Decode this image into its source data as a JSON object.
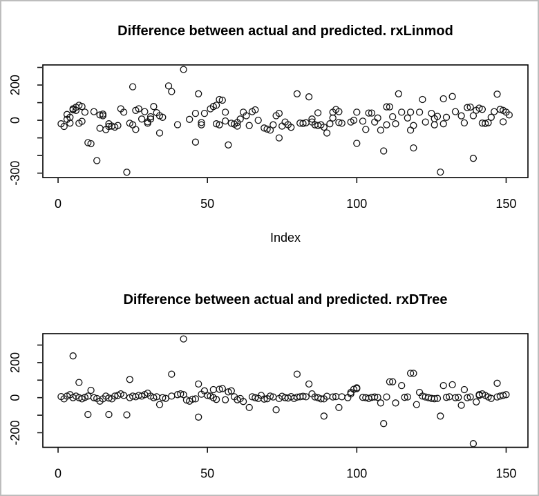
{
  "window": {
    "background": "#ffffff",
    "border_color": "#bdbdbd"
  },
  "styles": {
    "point_color": "#111111",
    "axis_color": "#000000",
    "text_color": "#000000"
  },
  "chart_data": [
    {
      "type": "scatter",
      "title": "Difference between actual and predicted. rxLinmod",
      "xlabel": "Index",
      "ylabel": "",
      "grid": false,
      "legend": null,
      "xlim": [
        -5.1,
        157.3
      ],
      "ylim": [
        -325,
        314
      ],
      "x_ticks": [
        {
          "v": 0,
          "label": "0"
        },
        {
          "v": 50,
          "label": "50"
        },
        {
          "v": 100,
          "label": "100"
        },
        {
          "v": 150,
          "label": "150"
        }
      ],
      "y_ticks": [
        {
          "v": 300,
          "label": ""
        },
        {
          "v": 200,
          "label": "200"
        },
        {
          "v": 100,
          "label": ""
        },
        {
          "v": 0,
          "label": "0"
        },
        {
          "v": -100,
          "label": ""
        },
        {
          "v": -200,
          "label": ""
        },
        {
          "v": -300,
          "label": "-300"
        }
      ],
      "points": [
        [
          1,
          -20
        ],
        [
          2,
          -35
        ],
        [
          3,
          5
        ],
        [
          3,
          33
        ],
        [
          4,
          -16
        ],
        [
          4,
          17
        ],
        [
          5,
          59
        ],
        [
          5,
          65
        ],
        [
          6,
          74
        ],
        [
          6,
          56
        ],
        [
          7,
          85
        ],
        [
          7,
          -17
        ],
        [
          8,
          78
        ],
        [
          8,
          -6
        ],
        [
          9,
          46
        ],
        [
          10,
          -127
        ],
        [
          11,
          -133
        ],
        [
          12,
          49
        ],
        [
          13,
          -229
        ],
        [
          14,
          -45
        ],
        [
          14,
          30
        ],
        [
          15,
          35
        ],
        [
          15,
          26
        ],
        [
          16,
          -53
        ],
        [
          17,
          -35
        ],
        [
          17,
          -20
        ],
        [
          18,
          -33
        ],
        [
          19,
          -39
        ],
        [
          20,
          -30
        ],
        [
          21,
          65
        ],
        [
          22,
          46
        ],
        [
          23,
          -295
        ],
        [
          24,
          -17
        ],
        [
          25,
          190
        ],
        [
          25,
          -26
        ],
        [
          26,
          -52
        ],
        [
          26,
          56
        ],
        [
          27,
          65
        ],
        [
          28,
          7
        ],
        [
          29,
          49
        ],
        [
          30,
          -9
        ],
        [
          30,
          -17
        ],
        [
          31,
          7
        ],
        [
          31,
          20
        ],
        [
          32,
          78
        ],
        [
          33,
          43
        ],
        [
          34,
          26
        ],
        [
          34,
          -72
        ],
        [
          35,
          17
        ],
        [
          37,
          195
        ],
        [
          38,
          163
        ],
        [
          40,
          -25
        ],
        [
          42,
          288
        ],
        [
          44,
          5
        ],
        [
          46,
          39
        ],
        [
          46,
          -124
        ],
        [
          47,
          150
        ],
        [
          48,
          -13
        ],
        [
          48,
          -26
        ],
        [
          49,
          39
        ],
        [
          51,
          65
        ],
        [
          52,
          78
        ],
        [
          53,
          85
        ],
        [
          53,
          -20
        ],
        [
          54,
          118
        ],
        [
          54,
          -26
        ],
        [
          55,
          114
        ],
        [
          56,
          -4
        ],
        [
          56,
          46
        ],
        [
          57,
          -140
        ],
        [
          58,
          -17
        ],
        [
          59,
          -22
        ],
        [
          60,
          -33
        ],
        [
          60,
          -13
        ],
        [
          61,
          7
        ],
        [
          62,
          46
        ],
        [
          63,
          26
        ],
        [
          64,
          -30
        ],
        [
          65,
          49
        ],
        [
          66,
          59
        ],
        [
          67,
          0
        ],
        [
          69,
          -44
        ],
        [
          70,
          -50
        ],
        [
          71,
          -56
        ],
        [
          72,
          -26
        ],
        [
          73,
          26
        ],
        [
          74,
          39
        ],
        [
          74,
          -100
        ],
        [
          75,
          -33
        ],
        [
          76,
          -10
        ],
        [
          77,
          -25
        ],
        [
          78,
          -40
        ],
        [
          80,
          150
        ],
        [
          81,
          -16
        ],
        [
          82,
          -18
        ],
        [
          83,
          -14
        ],
        [
          84,
          133
        ],
        [
          85,
          7
        ],
        [
          85,
          -10
        ],
        [
          86,
          -26
        ],
        [
          87,
          42
        ],
        [
          87,
          -30
        ],
        [
          88,
          -26
        ],
        [
          89,
          -39
        ],
        [
          90,
          -72
        ],
        [
          91,
          -20
        ],
        [
          92,
          13
        ],
        [
          92,
          46
        ],
        [
          93,
          61
        ],
        [
          94,
          49
        ],
        [
          94,
          -13
        ],
        [
          95,
          -17
        ],
        [
          98,
          -10
        ],
        [
          99,
          0
        ],
        [
          100,
          46
        ],
        [
          100,
          -131
        ],
        [
          102,
          -5
        ],
        [
          103,
          -52
        ],
        [
          104,
          41
        ],
        [
          105,
          41
        ],
        [
          106,
          -10
        ],
        [
          107,
          13
        ],
        [
          108,
          -56
        ],
        [
          109,
          -174
        ],
        [
          110,
          -26
        ],
        [
          110,
          76
        ],
        [
          111,
          76
        ],
        [
          112,
          20
        ],
        [
          113,
          -20
        ],
        [
          114,
          150
        ],
        [
          115,
          46
        ],
        [
          117,
          13
        ],
        [
          118,
          -56
        ],
        [
          118,
          46
        ],
        [
          119,
          -30
        ],
        [
          119,
          -157
        ],
        [
          121,
          46
        ],
        [
          122,
          118
        ],
        [
          123,
          -10
        ],
        [
          125,
          39
        ],
        [
          126,
          9
        ],
        [
          126,
          -26
        ],
        [
          127,
          22
        ],
        [
          128,
          -294
        ],
        [
          129,
          122
        ],
        [
          129,
          -20
        ],
        [
          130,
          17
        ],
        [
          132,
          135
        ],
        [
          133,
          49
        ],
        [
          135,
          25
        ],
        [
          136,
          -15
        ],
        [
          137,
          72
        ],
        [
          138,
          75
        ],
        [
          139,
          26
        ],
        [
          139,
          -216
        ],
        [
          140,
          57
        ],
        [
          141,
          69
        ],
        [
          142,
          62
        ],
        [
          142,
          -16
        ],
        [
          143,
          -18
        ],
        [
          144,
          -14
        ],
        [
          145,
          17
        ],
        [
          146,
          49
        ],
        [
          147,
          148
        ],
        [
          148,
          62
        ],
        [
          149,
          56
        ],
        [
          149,
          -9
        ],
        [
          150,
          46
        ],
        [
          151,
          30
        ]
      ]
    },
    {
      "type": "scatter",
      "title": "Difference between actual and predicted. rxDTree",
      "xlabel": "",
      "ylabel": "",
      "grid": false,
      "legend": null,
      "xlim": [
        -5.1,
        157.3
      ],
      "ylim": [
        -283,
        365
      ],
      "x_ticks": [
        {
          "v": 0,
          "label": "0"
        },
        {
          "v": 50,
          "label": "50"
        },
        {
          "v": 100,
          "label": "100"
        },
        {
          "v": 150,
          "label": "150"
        }
      ],
      "y_ticks": [
        {
          "v": 300,
          "label": ""
        },
        {
          "v": 200,
          "label": "200"
        },
        {
          "v": 100,
          "label": ""
        },
        {
          "v": 0,
          "label": "0"
        },
        {
          "v": -100,
          "label": ""
        },
        {
          "v": -200,
          "label": "-200"
        }
      ],
      "points": [
        [
          1,
          6
        ],
        [
          2,
          -7
        ],
        [
          3,
          9
        ],
        [
          4,
          17
        ],
        [
          5,
          238
        ],
        [
          5,
          0
        ],
        [
          6,
          9
        ],
        [
          7,
          87
        ],
        [
          7,
          0
        ],
        [
          8,
          -7
        ],
        [
          9,
          2
        ],
        [
          10,
          9
        ],
        [
          10,
          -96
        ],
        [
          11,
          42
        ],
        [
          12,
          0
        ],
        [
          13,
          -5
        ],
        [
          14,
          -20
        ],
        [
          15,
          -7
        ],
        [
          16,
          9
        ],
        [
          17,
          -2
        ],
        [
          17,
          -96
        ],
        [
          18,
          -7
        ],
        [
          19,
          9
        ],
        [
          20,
          13
        ],
        [
          21,
          22
        ],
        [
          22,
          13
        ],
        [
          23,
          -98
        ],
        [
          24,
          104
        ],
        [
          24,
          0
        ],
        [
          25,
          9
        ],
        [
          26,
          5
        ],
        [
          27,
          13
        ],
        [
          28,
          9
        ],
        [
          29,
          17
        ],
        [
          30,
          26
        ],
        [
          31,
          9
        ],
        [
          32,
          0
        ],
        [
          33,
          5
        ],
        [
          34,
          -39
        ],
        [
          35,
          0
        ],
        [
          36,
          -4
        ],
        [
          38,
          134
        ],
        [
          38,
          9
        ],
        [
          40,
          17
        ],
        [
          41,
          22
        ],
        [
          42,
          335
        ],
        [
          42,
          17
        ],
        [
          43,
          -13
        ],
        [
          44,
          -20
        ],
        [
          45,
          -9
        ],
        [
          46,
          -7
        ],
        [
          47,
          78
        ],
        [
          47,
          -111
        ],
        [
          48,
          20
        ],
        [
          49,
          39
        ],
        [
          50,
          13
        ],
        [
          51,
          9
        ],
        [
          52,
          0
        ],
        [
          52,
          46
        ],
        [
          53,
          -10
        ],
        [
          54,
          48
        ],
        [
          55,
          52
        ],
        [
          56,
          -12
        ],
        [
          57,
          33
        ],
        [
          58,
          39
        ],
        [
          59,
          5
        ],
        [
          60,
          -12
        ],
        [
          61,
          -5
        ],
        [
          62,
          -22
        ],
        [
          64,
          -56
        ],
        [
          65,
          5
        ],
        [
          66,
          0
        ],
        [
          67,
          -4
        ],
        [
          68,
          13
        ],
        [
          69,
          -8
        ],
        [
          70,
          -6
        ],
        [
          71,
          9
        ],
        [
          72,
          4
        ],
        [
          73,
          -69
        ],
        [
          74,
          -5
        ],
        [
          75,
          8
        ],
        [
          76,
          0
        ],
        [
          77,
          -2
        ],
        [
          78,
          6
        ],
        [
          79,
          -4
        ],
        [
          80,
          134
        ],
        [
          80,
          3
        ],
        [
          81,
          5
        ],
        [
          82,
          8
        ],
        [
          83,
          5
        ],
        [
          84,
          78
        ],
        [
          85,
          22
        ],
        [
          86,
          4
        ],
        [
          87,
          0
        ],
        [
          88,
          -7
        ],
        [
          89,
          -7
        ],
        [
          89,
          -105
        ],
        [
          90,
          8
        ],
        [
          92,
          4
        ],
        [
          93,
          6
        ],
        [
          94,
          -56
        ],
        [
          95,
          5
        ],
        [
          97,
          0
        ],
        [
          98,
          22
        ],
        [
          98,
          30
        ],
        [
          99,
          48
        ],
        [
          100,
          56
        ],
        [
          100,
          52
        ],
        [
          102,
          2
        ],
        [
          103,
          0
        ],
        [
          104,
          -4
        ],
        [
          105,
          2
        ],
        [
          106,
          4
        ],
        [
          107,
          2
        ],
        [
          108,
          -30
        ],
        [
          109,
          -148
        ],
        [
          110,
          4
        ],
        [
          111,
          91
        ],
        [
          112,
          91
        ],
        [
          113,
          -30
        ],
        [
          115,
          69
        ],
        [
          116,
          2
        ],
        [
          117,
          4
        ],
        [
          118,
          139
        ],
        [
          119,
          139
        ],
        [
          120,
          -39
        ],
        [
          121,
          30
        ],
        [
          122,
          9
        ],
        [
          123,
          4
        ],
        [
          124,
          0
        ],
        [
          125,
          -4
        ],
        [
          126,
          -6
        ],
        [
          127,
          -4
        ],
        [
          128,
          -105
        ],
        [
          129,
          69
        ],
        [
          130,
          2
        ],
        [
          131,
          5
        ],
        [
          132,
          74
        ],
        [
          133,
          0
        ],
        [
          134,
          2
        ],
        [
          135,
          -43
        ],
        [
          136,
          46
        ],
        [
          137,
          0
        ],
        [
          138,
          4
        ],
        [
          139,
          -262
        ],
        [
          140,
          -24
        ],
        [
          141,
          13
        ],
        [
          141,
          17
        ],
        [
          142,
          22
        ],
        [
          143,
          13
        ],
        [
          144,
          4
        ],
        [
          145,
          -4
        ],
        [
          147,
          82
        ],
        [
          147,
          4
        ],
        [
          148,
          9
        ],
        [
          149,
          13
        ],
        [
          150,
          17
        ]
      ]
    }
  ]
}
